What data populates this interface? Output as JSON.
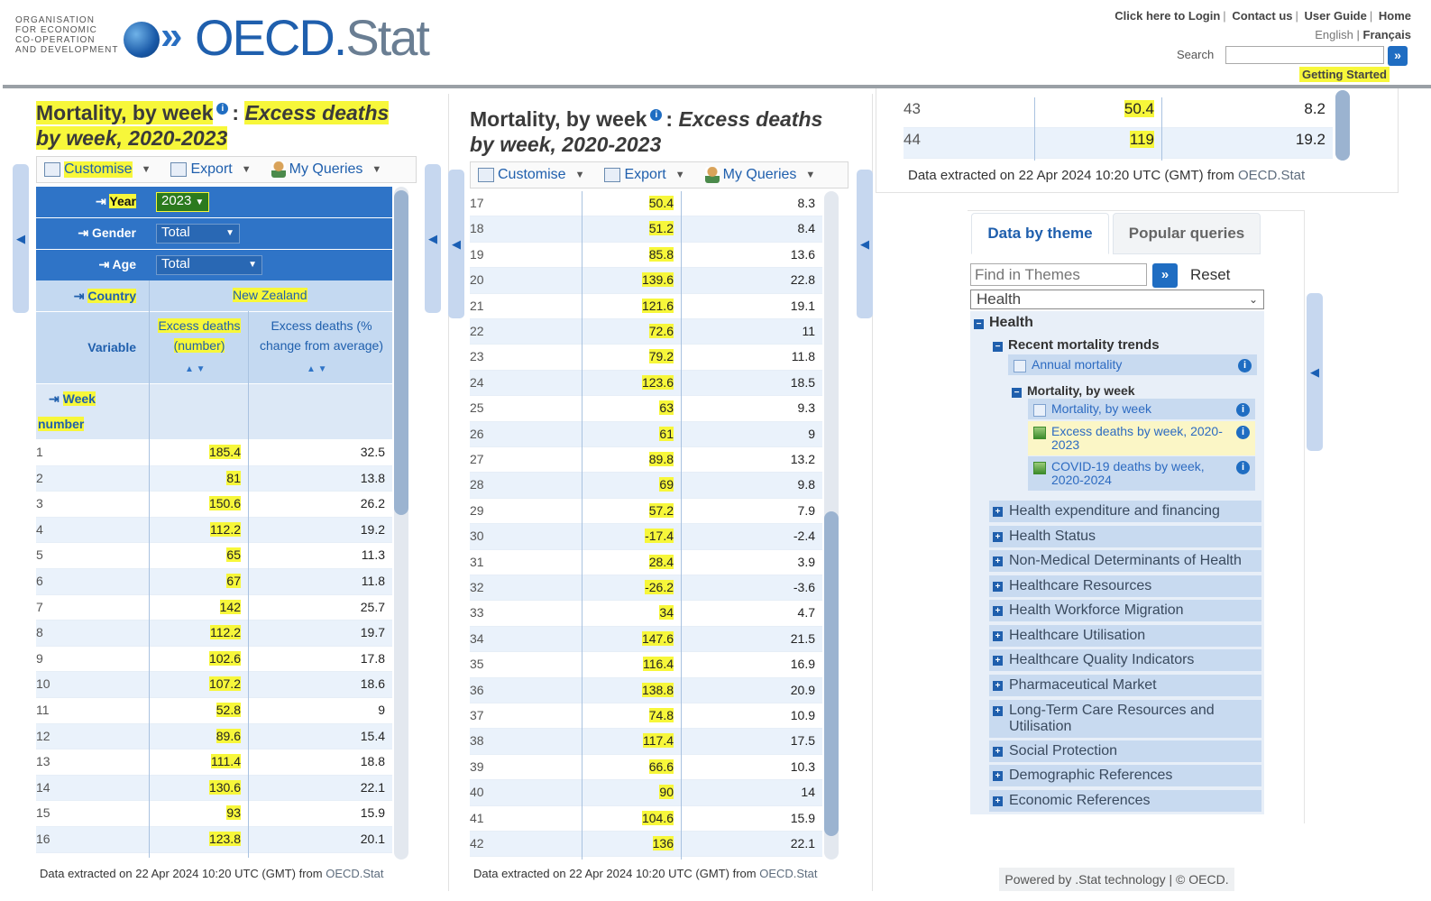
{
  "header": {
    "org_lines": [
      "ORGANISATION",
      "FOR ECONOMIC",
      "CO-OPERATION",
      "AND DEVELOPMENT"
    ],
    "brand_main": "OECD.",
    "brand_sub": "Stat",
    "top_links": [
      "Click here to Login",
      "Contact us",
      "User Guide",
      "Home"
    ],
    "lang_en": "English",
    "lang_fr": "Français",
    "search_label": "Search",
    "search_value": "",
    "getting_started": "Getting Started"
  },
  "dataset": {
    "title_main": "Mortality, by week",
    "title_sub": "Excess deaths by week, 2020-2023",
    "title_sub_line1": "Excess deaths",
    "title_sub_line2": "by week, 2020-2023",
    "title_sub_mid_line1": "Excess deaths",
    "colon": ":",
    "info_glyph": "i"
  },
  "toolbar": {
    "customise": "Customise",
    "export": "Export",
    "my_queries": "My Queries"
  },
  "filters": {
    "year_label": "Year",
    "year_value": "2023",
    "gender_label": "Gender",
    "gender_value": "Total",
    "age_label": "Age",
    "age_value": "Total",
    "country_label": "Country",
    "country_value": "New Zealand",
    "variable_label": "Variable",
    "var_col1_line1": "Excess deaths",
    "var_col1_line2": "(number)",
    "var_col2_line1": "Excess deaths (%",
    "var_col2_line2": "change from average)",
    "week_label_1": "Week",
    "week_label_2": "number"
  },
  "table_left": [
    {
      "week": "1",
      "excess": "185.4",
      "pct": "32.5"
    },
    {
      "week": "2",
      "excess": "81",
      "pct": "13.8"
    },
    {
      "week": "3",
      "excess": "150.6",
      "pct": "26.2"
    },
    {
      "week": "4",
      "excess": "112.2",
      "pct": "19.2"
    },
    {
      "week": "5",
      "excess": "65",
      "pct": "11.3"
    },
    {
      "week": "6",
      "excess": "67",
      "pct": "11.8"
    },
    {
      "week": "7",
      "excess": "142",
      "pct": "25.7"
    },
    {
      "week": "8",
      "excess": "112.2",
      "pct": "19.7"
    },
    {
      "week": "9",
      "excess": "102.6",
      "pct": "17.8"
    },
    {
      "week": "10",
      "excess": "107.2",
      "pct": "18.6"
    },
    {
      "week": "11",
      "excess": "52.8",
      "pct": "9"
    },
    {
      "week": "12",
      "excess": "89.6",
      "pct": "15.4"
    },
    {
      "week": "13",
      "excess": "111.4",
      "pct": "18.8"
    },
    {
      "week": "14",
      "excess": "130.6",
      "pct": "22.1"
    },
    {
      "week": "15",
      "excess": "93",
      "pct": "15.9"
    },
    {
      "week": "16",
      "excess": "123.8",
      "pct": "20.1"
    }
  ],
  "table_mid": [
    {
      "week": "17",
      "excess": "50.4",
      "pct": "8.3"
    },
    {
      "week": "18",
      "excess": "51.2",
      "pct": "8.4"
    },
    {
      "week": "19",
      "excess": "85.8",
      "pct": "13.6"
    },
    {
      "week": "20",
      "excess": "139.6",
      "pct": "22.8"
    },
    {
      "week": "21",
      "excess": "121.6",
      "pct": "19.1"
    },
    {
      "week": "22",
      "excess": "72.6",
      "pct": "11"
    },
    {
      "week": "23",
      "excess": "79.2",
      "pct": "11.8"
    },
    {
      "week": "24",
      "excess": "123.6",
      "pct": "18.5"
    },
    {
      "week": "25",
      "excess": "63",
      "pct": "9.3"
    },
    {
      "week": "26",
      "excess": "61",
      "pct": "9"
    },
    {
      "week": "27",
      "excess": "89.8",
      "pct": "13.2"
    },
    {
      "week": "28",
      "excess": "69",
      "pct": "9.8"
    },
    {
      "week": "29",
      "excess": "57.2",
      "pct": "7.9"
    },
    {
      "week": "30",
      "excess": "-17.4",
      "pct": "-2.4"
    },
    {
      "week": "31",
      "excess": "28.4",
      "pct": "3.9"
    },
    {
      "week": "32",
      "excess": "-26.2",
      "pct": "-3.6"
    },
    {
      "week": "33",
      "excess": "34",
      "pct": "4.7"
    },
    {
      "week": "34",
      "excess": "147.6",
      "pct": "21.5"
    },
    {
      "week": "35",
      "excess": "116.4",
      "pct": "16.9"
    },
    {
      "week": "36",
      "excess": "138.8",
      "pct": "20.9"
    },
    {
      "week": "37",
      "excess": "74.8",
      "pct": "10.9"
    },
    {
      "week": "38",
      "excess": "117.4",
      "pct": "17.5"
    },
    {
      "week": "39",
      "excess": "66.6",
      "pct": "10.3"
    },
    {
      "week": "40",
      "excess": "90",
      "pct": "14"
    },
    {
      "week": "41",
      "excess": "104.6",
      "pct": "15.9"
    },
    {
      "week": "42",
      "excess": "136",
      "pct": "22.1"
    }
  ],
  "table_right": [
    {
      "week": "43",
      "excess": "50.4",
      "pct": "8.2"
    },
    {
      "week": "44",
      "excess": "119",
      "pct": "19.2"
    }
  ],
  "footnote": {
    "prefix": "Data extracted on 22 Apr 2024 10:20 UTC (GMT) from ",
    "source": "OECD.Stat"
  },
  "themes": {
    "tab_active": "Data by theme",
    "tab_other": "Popular queries",
    "find_placeholder": "Find in Themes",
    "go_glyph": "»",
    "reset": "Reset",
    "theme_select": "Health",
    "root": "Health",
    "sub": "Recent mortality trends",
    "annual": "Annual mortality",
    "sub2": "Mortality, by week",
    "ds_mortality": "Mortality, by week",
    "ds_excess_line1": "Excess deaths by week, 2020-",
    "ds_excess_line2": "2023",
    "ds_covid_line1": "COVID-19 deaths by week,",
    "ds_covid_line2": "2020-2024",
    "categories": [
      "Health expenditure and financing",
      "Health Status",
      "Non-Medical Determinants of Health",
      "Healthcare Resources",
      "Health Workforce Migration",
      "Healthcare Utilisation",
      "Healthcare Quality Indicators",
      "Pharmaceutical Market",
      "Long-Term Care Resources and Utilisation",
      "Social Protection",
      "Demographic References",
      "Economic References"
    ]
  },
  "powered_by": "Powered by .Stat technology | © OECD.",
  "colors": {
    "accent": "#2f74c7",
    "highlight": "#f7f73a",
    "light_blue": "#c4d9f1"
  }
}
